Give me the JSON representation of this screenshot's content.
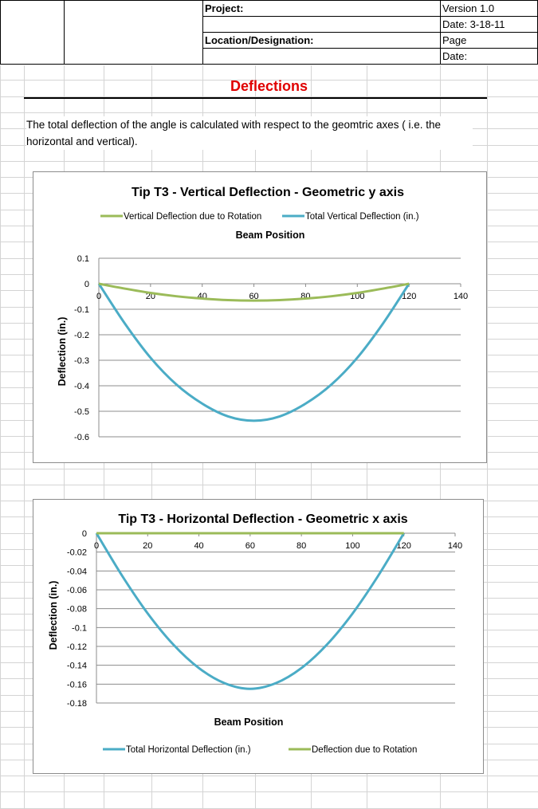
{
  "header": {
    "project_label": "Project:",
    "version": "Version 1.0",
    "date_line": "Date: 3-18-11",
    "location_label": "Location/Designation:",
    "page_label": "Page",
    "date_label": "Date:"
  },
  "section_title": "Deflections",
  "description": "The total deflection of the angle is calculated with respect to the geomtric axes ( i.e. the horizontal and vertical).",
  "colors": {
    "green": "#9bbb59",
    "blue": "#4bacc6",
    "title_red": "#e00000"
  },
  "chart_data": [
    {
      "type": "line",
      "title": "Tip T3 - Vertical Deflection - Geometric y axis",
      "xlabel": "Beam Position",
      "ylabel": "Deflection (in.)",
      "xlim": [
        0,
        140
      ],
      "ylim": [
        -0.6,
        0.1
      ],
      "xticks": [
        "0",
        "20",
        "40",
        "60",
        "80",
        "100",
        "120",
        "140"
      ],
      "yticks": [
        "0.1",
        "0",
        "-0.1",
        "-0.2",
        "-0.3",
        "-0.4",
        "-0.5",
        "-0.6"
      ],
      "legend_position": "top",
      "x": [
        0,
        10,
        20,
        30,
        40,
        50,
        60,
        70,
        80,
        90,
        100,
        110,
        120
      ],
      "series": [
        {
          "name": "Vertical Deflection due to Rotation",
          "color": "#9bbb59",
          "values": [
            0,
            -0.019,
            -0.036,
            -0.049,
            -0.058,
            -0.064,
            -0.066,
            -0.064,
            -0.058,
            -0.049,
            -0.036,
            -0.019,
            0
          ]
        },
        {
          "name": "Total Vertical Deflection (in.)",
          "color": "#4bacc6",
          "values": [
            0,
            -0.155,
            -0.29,
            -0.395,
            -0.47,
            -0.52,
            -0.537,
            -0.52,
            -0.47,
            -0.395,
            -0.29,
            -0.155,
            0
          ]
        }
      ]
    },
    {
      "type": "line",
      "title": "Tip T3 - Horizontal Deflection - Geometric x axis",
      "xlabel": "Beam Position",
      "ylabel": "Deflection (in.)",
      "xlim": [
        0,
        140
      ],
      "ylim": [
        -0.18,
        0
      ],
      "xticks": [
        "0",
        "20",
        "40",
        "60",
        "80",
        "100",
        "120",
        "140"
      ],
      "yticks": [
        "0",
        "-0.02",
        "-0.04",
        "-0.06",
        "-0.08",
        "-0.1",
        "-0.12",
        "-0.14",
        "-0.16",
        "-0.18"
      ],
      "legend_position": "bottom",
      "x": [
        0,
        10,
        20,
        30,
        40,
        50,
        60,
        70,
        80,
        90,
        100,
        110,
        120
      ],
      "series": [
        {
          "name": "Total Horizontal  Deflection (in.)",
          "color": "#4bacc6",
          "values": [
            0,
            -0.045,
            -0.085,
            -0.118,
            -0.143,
            -0.159,
            -0.165,
            -0.159,
            -0.143,
            -0.118,
            -0.085,
            -0.045,
            0
          ]
        },
        {
          "name": "Deflection due to Rotation",
          "color": "#9bbb59",
          "values": [
            0,
            0,
            0,
            0,
            0,
            0,
            0,
            0,
            0,
            0,
            0,
            0,
            0
          ]
        }
      ]
    }
  ]
}
